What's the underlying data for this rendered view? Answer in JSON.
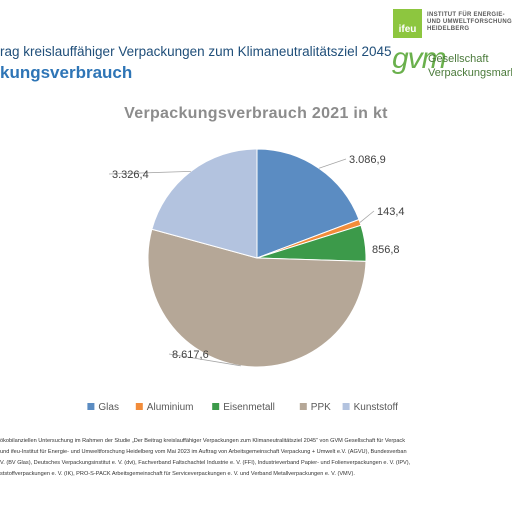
{
  "header": {
    "title": "rag kreislauffähiger Verpackungen zum Klimaneutralitätsziel 2045",
    "subtitle": "kungsverbrauch"
  },
  "logos": {
    "ifeu_mark": "ifeu",
    "ifeu_line1": "INSTITUT FÜR ENERGIE-",
    "ifeu_line2": "UND UMWELTFORSCHUNG",
    "ifeu_line3": "HEIDELBERG",
    "gvm_mark": "gvm",
    "gvm_line1": "Gesellschaft",
    "gvm_line2": "Verpackungsmarkt"
  },
  "chart_data": {
    "type": "pie",
    "title": "Verpackungsverbrauch  2021 in kt",
    "categories": [
      "Glas",
      "Aluminium",
      "Eisenmetall",
      "PPK",
      "Kunststoff"
    ],
    "values": [
      3086.9,
      143.4,
      856.8,
      8617.6,
      3326.4
    ],
    "data_labels": [
      "3.086,9",
      "143,4",
      "856,8",
      "8.617,6",
      "3.326,4"
    ],
    "colors": [
      "#5b8cc2",
      "#f28c3a",
      "#3c9a4a",
      "#b5a797",
      "#b3c3df"
    ],
    "legend": "bottom"
  },
  "footer": {
    "line1": "ökobilanziellen Untersuchung im Rahmen der Studie „Der Beitrag kreislauffähiger Verpackungen zum Klimaneutralitätsziel 2045“ von GVM Gesellschaft für Verpack",
    "line2": "und ifeu-Institut für Energie- und Umweltforschung Heidelberg vom Mai 2023 im Auftrag von Arbeitsgemeinschaft Verpackung + Umwelt e.V. (AGVU), Bundesverban",
    "line3": "V. (BV Glas), Deutsches Verpackungsinstitut e. V. (dvi), Fachverband Faltschachtel Industrie e. V. (FFI), Industrieverband Papier- und Folienverpackungen e. V. (IPV),",
    "line4": "ststoffverpackungen e. V. (IK), PRO-S-PACK Arbeitsgemeinschaft für Serviceverpackungen e. V. und Verband Metallverpackungen e. V. (VMV)."
  }
}
